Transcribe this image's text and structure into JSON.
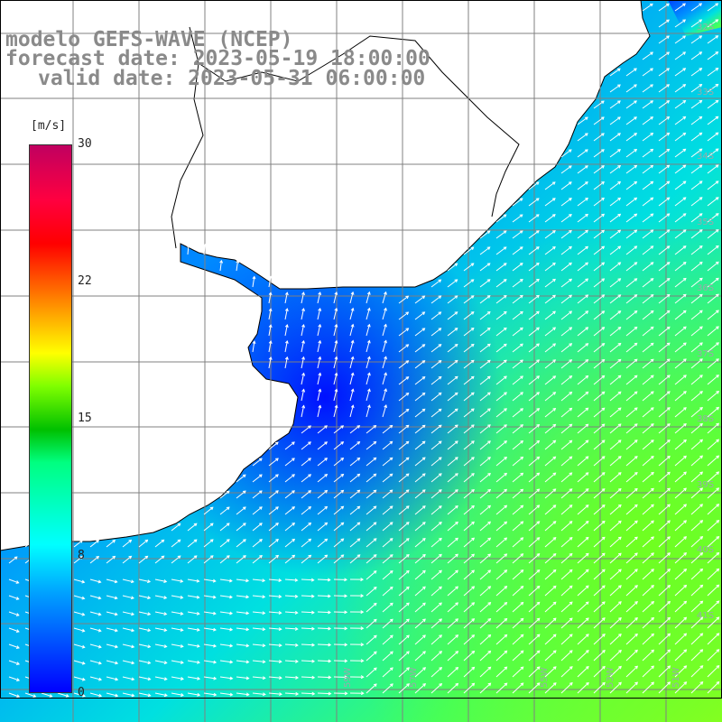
{
  "title": {
    "line1": "modelo GEFS-WAVE (NCEP)",
    "line2": "forecast date: 2023-05-19 18:00:00",
    "line3": "valid date: 2023-05-31 06:00:00"
  },
  "colorbar": {
    "units": "[m/s]",
    "ticks": [
      "30",
      "22",
      "15",
      "8",
      "0"
    ],
    "colors": [
      "#0000ff",
      "#00a0ff",
      "#00ffff",
      "#00ff80",
      "#00c000",
      "#80ff00",
      "#ffff00",
      "#ff8000",
      "#ff0000",
      "#c00060"
    ]
  },
  "map": {
    "lat_labels": [
      "32S",
      "33S",
      "34S",
      "35S",
      "36S",
      "37S",
      "38S",
      "39S",
      "40S",
      "41S"
    ],
    "lon_labels": [
      "59W",
      "57W",
      "55W",
      "53W",
      "51W"
    ],
    "field": "wind speed",
    "land_color": "#ffffff",
    "coast_color": "#000000",
    "grid_color": "#808080",
    "arrow_color": "#ffffff"
  }
}
